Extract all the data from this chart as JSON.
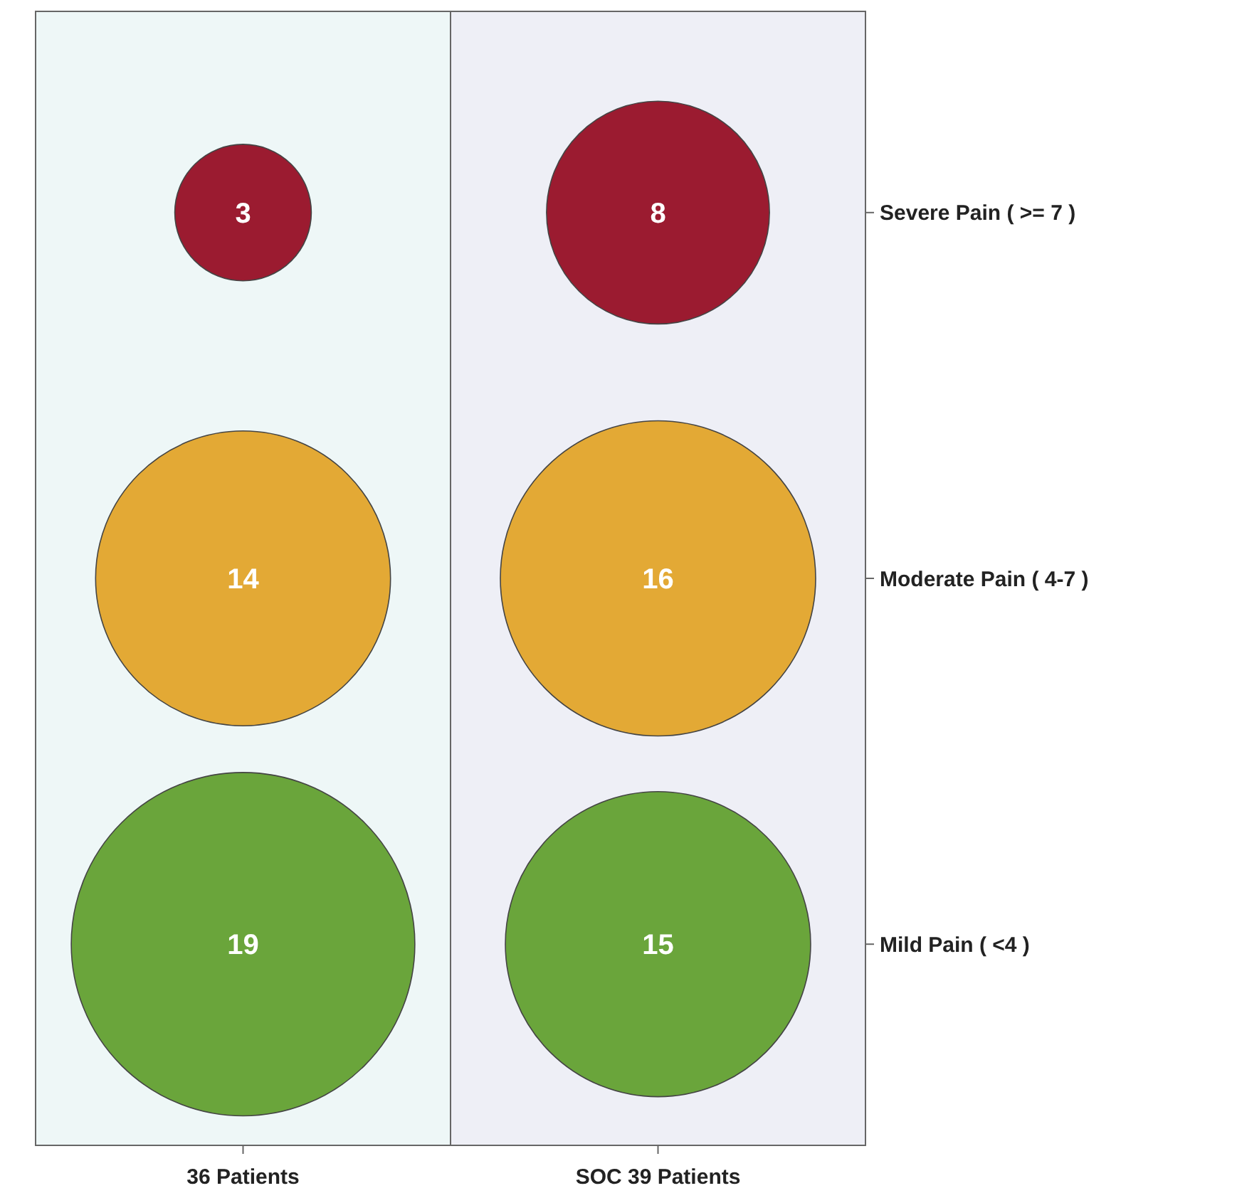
{
  "chart_data": {
    "type": "other",
    "categories": [
      "36 Patients",
      "SOC 39 Patients"
    ],
    "y_categories": [
      "Severe Pain ( >= 7 )",
      "Moderate Pain ( 4-7 )",
      "Mild Pain ( <4 )"
    ],
    "data_labels": true,
    "series": [
      {
        "color": "#9b1b30",
        "values": [
          3,
          8
        ]
      },
      {
        "color": "#e3a935",
        "values": [
          14,
          16
        ]
      },
      {
        "color": "#6aa53b",
        "values": [
          19,
          15
        ]
      }
    ]
  }
}
